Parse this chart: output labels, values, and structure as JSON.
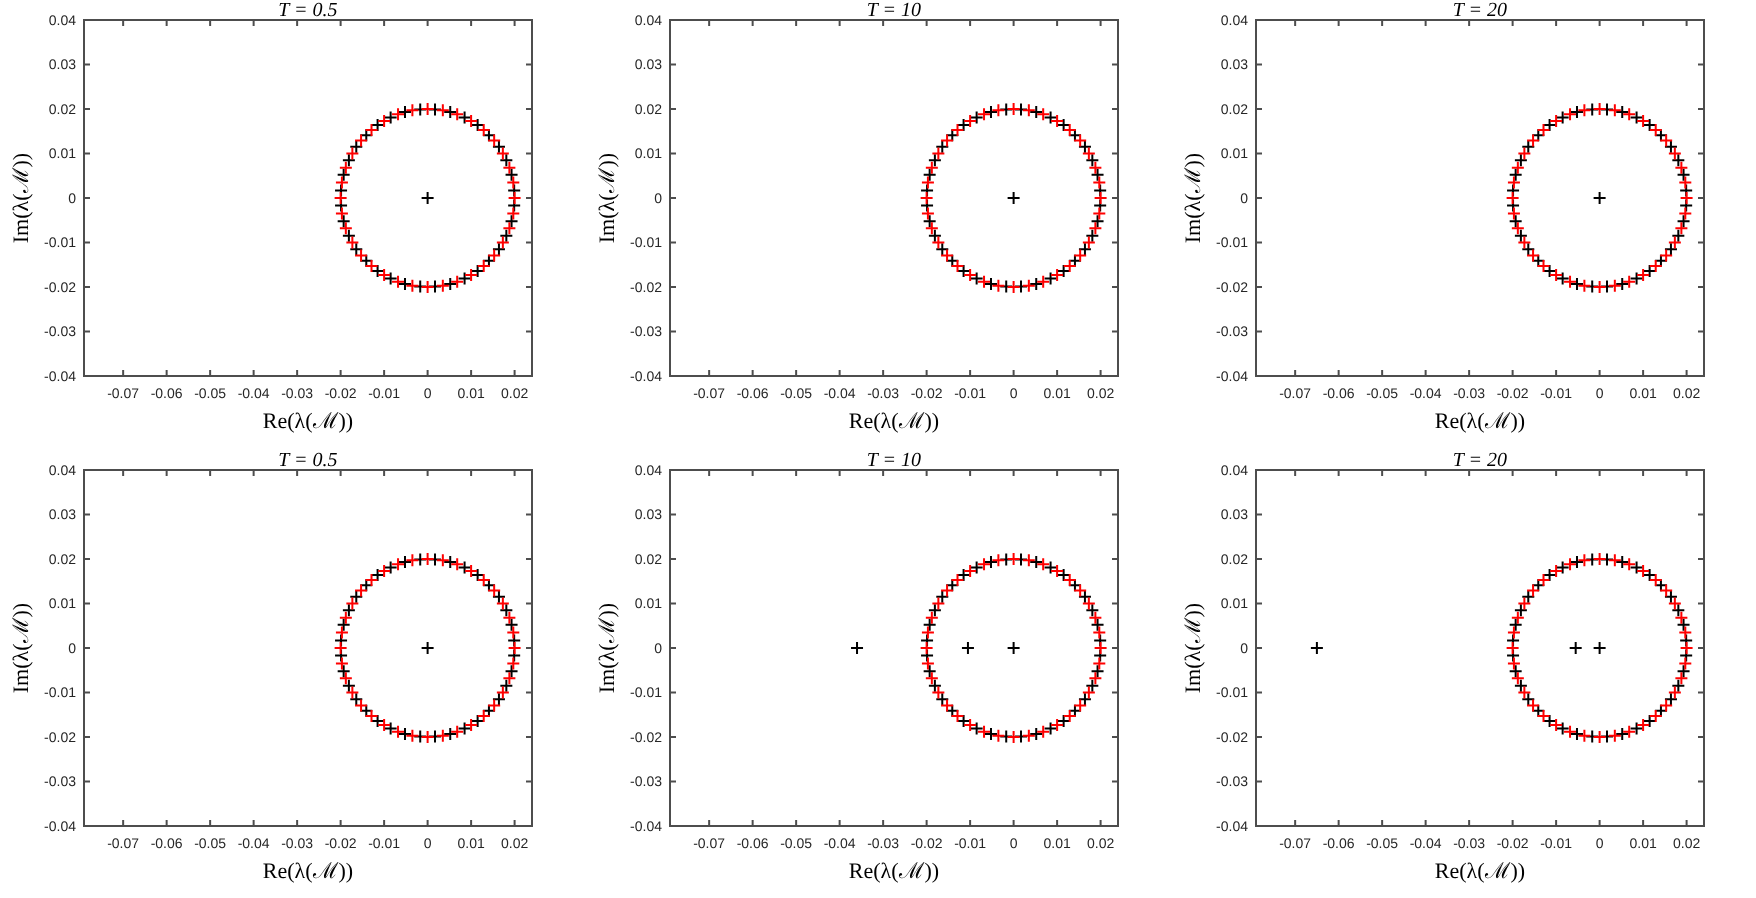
{
  "chart_data": [
    {
      "type": "scatter",
      "title": "T = 0.5",
      "xlabel": "Re(λ(ℳ))",
      "ylabel": "Im(λ(ℳ))",
      "xlim": [
        -0.079,
        0.024
      ],
      "ylim": [
        -0.04,
        0.04
      ],
      "xticks": [
        -0.07,
        -0.06,
        -0.05,
        -0.04,
        -0.03,
        -0.02,
        -0.01,
        0,
        0.01,
        0.02
      ],
      "yticks": [
        -0.04,
        -0.03,
        -0.02,
        -0.01,
        0,
        0.01,
        0.02,
        0.03,
        0.04
      ],
      "marker": "cross",
      "series": [
        {
          "color": "#000000",
          "x": [
            0.0199,
            0.0193,
            0.0181,
            0.0164,
            0.0141,
            0.0115,
            0.0085,
            0.0052,
            0.0017,
            -0.0017,
            -0.0052,
            -0.0085,
            -0.0115,
            -0.0141,
            -0.0164,
            -0.0181,
            -0.0193,
            -0.0199,
            -0.0199,
            -0.0193,
            -0.0181,
            -0.0164,
            -0.0141,
            -0.0115,
            -0.0085,
            -0.0052,
            -0.0017,
            0.0017,
            0.0052,
            0.0085,
            0.0115,
            0.0141,
            0.0164,
            0.0181,
            0.0193,
            0.0199,
            0
          ],
          "values": [
            0.0017,
            0.0052,
            0.0085,
            0.0115,
            0.0141,
            0.0164,
            0.0181,
            0.0193,
            0.0199,
            0.0199,
            0.0193,
            0.0181,
            0.0164,
            0.0141,
            0.0115,
            0.0085,
            0.0052,
            0.0017,
            -0.0017,
            -0.0052,
            -0.0085,
            -0.0115,
            -0.0141,
            -0.0164,
            -0.0181,
            -0.0193,
            -0.0199,
            -0.0199,
            -0.0193,
            -0.0181,
            -0.0164,
            -0.0141,
            -0.0115,
            -0.0085,
            -0.0052,
            -0.0017,
            0
          ]
        },
        {
          "color": "#ff0000",
          "x": [
            0.02,
            0.0197,
            0.0188,
            0.0173,
            0.0153,
            0.0129,
            0.01,
            0.0068,
            0.0035,
            0,
            -0.0035,
            -0.0068,
            -0.01,
            -0.0129,
            -0.0153,
            -0.0173,
            -0.0188,
            -0.0197,
            -0.02,
            -0.0197,
            -0.0188,
            -0.0173,
            -0.0153,
            -0.0129,
            -0.01,
            -0.0068,
            -0.0035,
            0,
            0.0035,
            0.0068,
            0.01,
            0.0129,
            0.0153,
            0.0173,
            0.0188,
            0.0197
          ],
          "values": [
            0,
            0.0035,
            0.0068,
            0.01,
            0.0129,
            0.0153,
            0.0173,
            0.0188,
            0.0197,
            0.02,
            0.0197,
            0.0188,
            0.0173,
            0.0153,
            0.0129,
            0.01,
            0.0068,
            0.0035,
            0,
            -0.0035,
            -0.0068,
            -0.01,
            -0.0129,
            -0.0153,
            -0.0173,
            -0.0188,
            -0.0197,
            -0.02,
            -0.0197,
            -0.0188,
            -0.0173,
            -0.0153,
            -0.0129,
            -0.01,
            -0.0068,
            -0.0035
          ]
        }
      ]
    },
    {
      "type": "scatter",
      "title": "T = 10",
      "xlabel": "Re(λ(ℳ))",
      "ylabel": "Im(λ(ℳ))",
      "xlim": [
        -0.079,
        0.024
      ],
      "ylim": [
        -0.04,
        0.04
      ],
      "xticks": [
        -0.07,
        -0.06,
        -0.05,
        -0.04,
        -0.03,
        -0.02,
        -0.01,
        0,
        0.01,
        0.02
      ],
      "yticks": [
        -0.04,
        -0.03,
        -0.02,
        -0.01,
        0,
        0.01,
        0.02,
        0.03,
        0.04
      ],
      "marker": "cross",
      "series": [
        {
          "color": "#000000",
          "x": [
            0.0199,
            0.0193,
            0.0181,
            0.0164,
            0.0141,
            0.0115,
            0.0085,
            0.0052,
            0.0017,
            -0.0017,
            -0.0052,
            -0.0085,
            -0.0115,
            -0.0141,
            -0.0164,
            -0.0181,
            -0.0193,
            -0.0199,
            -0.0199,
            -0.0193,
            -0.0181,
            -0.0164,
            -0.0141,
            -0.0115,
            -0.0085,
            -0.0052,
            -0.0017,
            0.0017,
            0.0052,
            0.0085,
            0.0115,
            0.0141,
            0.0164,
            0.0181,
            0.0193,
            0.0199,
            0
          ],
          "values": [
            0.0017,
            0.0052,
            0.0085,
            0.0115,
            0.0141,
            0.0164,
            0.0181,
            0.0193,
            0.0199,
            0.0199,
            0.0193,
            0.0181,
            0.0164,
            0.0141,
            0.0115,
            0.0085,
            0.0052,
            0.0017,
            -0.0017,
            -0.0052,
            -0.0085,
            -0.0115,
            -0.0141,
            -0.0164,
            -0.0181,
            -0.0193,
            -0.0199,
            -0.0199,
            -0.0193,
            -0.0181,
            -0.0164,
            -0.0141,
            -0.0115,
            -0.0085,
            -0.0052,
            -0.0017,
            0
          ]
        },
        {
          "color": "#ff0000",
          "x": [
            0.02,
            0.0197,
            0.0188,
            0.0173,
            0.0153,
            0.0129,
            0.01,
            0.0068,
            0.0035,
            0,
            -0.0035,
            -0.0068,
            -0.01,
            -0.0129,
            -0.0153,
            -0.0173,
            -0.0188,
            -0.0197,
            -0.02,
            -0.0197,
            -0.0188,
            -0.0173,
            -0.0153,
            -0.0129,
            -0.01,
            -0.0068,
            -0.0035,
            0,
            0.0035,
            0.0068,
            0.01,
            0.0129,
            0.0153,
            0.0173,
            0.0188,
            0.0197
          ],
          "values": [
            0,
            0.0035,
            0.0068,
            0.01,
            0.0129,
            0.0153,
            0.0173,
            0.0188,
            0.0197,
            0.02,
            0.0197,
            0.0188,
            0.0173,
            0.0153,
            0.0129,
            0.01,
            0.0068,
            0.0035,
            0,
            -0.0035,
            -0.0068,
            -0.01,
            -0.0129,
            -0.0153,
            -0.0173,
            -0.0188,
            -0.0197,
            -0.02,
            -0.0197,
            -0.0188,
            -0.0173,
            -0.0153,
            -0.0129,
            -0.01,
            -0.0068,
            -0.0035
          ]
        }
      ]
    },
    {
      "type": "scatter",
      "title": "T = 20",
      "xlabel": "Re(λ(ℳ))",
      "ylabel": "Im(λ(ℳ))",
      "xlim": [
        -0.079,
        0.024
      ],
      "ylim": [
        -0.04,
        0.04
      ],
      "xticks": [
        -0.07,
        -0.06,
        -0.05,
        -0.04,
        -0.03,
        -0.02,
        -0.01,
        0,
        0.01,
        0.02
      ],
      "yticks": [
        -0.04,
        -0.03,
        -0.02,
        -0.01,
        0,
        0.01,
        0.02,
        0.03,
        0.04
      ],
      "marker": "cross",
      "series": [
        {
          "color": "#000000",
          "x": [
            0.0199,
            0.0193,
            0.0181,
            0.0164,
            0.0141,
            0.0115,
            0.0085,
            0.0052,
            0.0017,
            -0.0017,
            -0.0052,
            -0.0085,
            -0.0115,
            -0.0141,
            -0.0164,
            -0.0181,
            -0.0193,
            -0.0199,
            -0.0199,
            -0.0193,
            -0.0181,
            -0.0164,
            -0.0141,
            -0.0115,
            -0.0085,
            -0.0052,
            -0.0017,
            0.0017,
            0.0052,
            0.0085,
            0.0115,
            0.0141,
            0.0164,
            0.0181,
            0.0193,
            0.0199,
            0
          ],
          "values": [
            0.0017,
            0.0052,
            0.0085,
            0.0115,
            0.0141,
            0.0164,
            0.0181,
            0.0193,
            0.0199,
            0.0199,
            0.0193,
            0.0181,
            0.0164,
            0.0141,
            0.0115,
            0.0085,
            0.0052,
            0.0017,
            -0.0017,
            -0.0052,
            -0.0085,
            -0.0115,
            -0.0141,
            -0.0164,
            -0.0181,
            -0.0193,
            -0.0199,
            -0.0199,
            -0.0193,
            -0.0181,
            -0.0164,
            -0.0141,
            -0.0115,
            -0.0085,
            -0.0052,
            -0.0017,
            0
          ]
        },
        {
          "color": "#ff0000",
          "x": [
            0.02,
            0.0197,
            0.0188,
            0.0173,
            0.0153,
            0.0129,
            0.01,
            0.0068,
            0.0035,
            0,
            -0.0035,
            -0.0068,
            -0.01,
            -0.0129,
            -0.0153,
            -0.0173,
            -0.0188,
            -0.0197,
            -0.02,
            -0.0197,
            -0.0188,
            -0.0173,
            -0.0153,
            -0.0129,
            -0.01,
            -0.0068,
            -0.0035,
            0,
            0.0035,
            0.0068,
            0.01,
            0.0129,
            0.0153,
            0.0173,
            0.0188,
            0.0197
          ],
          "values": [
            0,
            0.0035,
            0.0068,
            0.01,
            0.0129,
            0.0153,
            0.0173,
            0.0188,
            0.0197,
            0.02,
            0.0197,
            0.0188,
            0.0173,
            0.0153,
            0.0129,
            0.01,
            0.0068,
            0.0035,
            0,
            -0.0035,
            -0.0068,
            -0.01,
            -0.0129,
            -0.0153,
            -0.0173,
            -0.0188,
            -0.0197,
            -0.02,
            -0.0197,
            -0.0188,
            -0.0173,
            -0.0153,
            -0.0129,
            -0.01,
            -0.0068,
            -0.0035
          ]
        }
      ]
    },
    {
      "type": "scatter",
      "title": "T = 0.5",
      "xlabel": "Re(λ(ℳ))",
      "ylabel": "Im(λ(ℳ))",
      "xlim": [
        -0.079,
        0.024
      ],
      "ylim": [
        -0.04,
        0.04
      ],
      "xticks": [
        -0.07,
        -0.06,
        -0.05,
        -0.04,
        -0.03,
        -0.02,
        -0.01,
        0,
        0.01,
        0.02
      ],
      "yticks": [
        -0.04,
        -0.03,
        -0.02,
        -0.01,
        0,
        0.01,
        0.02,
        0.03,
        0.04
      ],
      "marker": "cross",
      "series": [
        {
          "color": "#000000",
          "x": [
            0.0199,
            0.0193,
            0.0181,
            0.0164,
            0.0141,
            0.0115,
            0.0085,
            0.0052,
            0.0017,
            -0.0017,
            -0.0052,
            -0.0085,
            -0.0115,
            -0.0141,
            -0.0164,
            -0.0181,
            -0.0193,
            -0.0199,
            -0.0199,
            -0.0193,
            -0.0181,
            -0.0164,
            -0.0141,
            -0.0115,
            -0.0085,
            -0.0052,
            -0.0017,
            0.0017,
            0.0052,
            0.0085,
            0.0115,
            0.0141,
            0.0164,
            0.0181,
            0.0193,
            0.0199,
            0
          ],
          "values": [
            0.0017,
            0.0052,
            0.0085,
            0.0115,
            0.0141,
            0.0164,
            0.0181,
            0.0193,
            0.0199,
            0.0199,
            0.0193,
            0.0181,
            0.0164,
            0.0141,
            0.0115,
            0.0085,
            0.0052,
            0.0017,
            -0.0017,
            -0.0052,
            -0.0085,
            -0.0115,
            -0.0141,
            -0.0164,
            -0.0181,
            -0.0193,
            -0.0199,
            -0.0199,
            -0.0193,
            -0.0181,
            -0.0164,
            -0.0141,
            -0.0115,
            -0.0085,
            -0.0052,
            -0.0017,
            0
          ]
        },
        {
          "color": "#ff0000",
          "x": [
            0.02,
            0.0197,
            0.0188,
            0.0173,
            0.0153,
            0.0129,
            0.01,
            0.0068,
            0.0035,
            0,
            -0.0035,
            -0.0068,
            -0.01,
            -0.0129,
            -0.0153,
            -0.0173,
            -0.0188,
            -0.0197,
            -0.02,
            -0.0197,
            -0.0188,
            -0.0173,
            -0.0153,
            -0.0129,
            -0.01,
            -0.0068,
            -0.0035,
            0,
            0.0035,
            0.0068,
            0.01,
            0.0129,
            0.0153,
            0.0173,
            0.0188,
            0.0197
          ],
          "values": [
            0,
            0.0035,
            0.0068,
            0.01,
            0.0129,
            0.0153,
            0.0173,
            0.0188,
            0.0197,
            0.02,
            0.0197,
            0.0188,
            0.0173,
            0.0153,
            0.0129,
            0.01,
            0.0068,
            0.0035,
            0,
            -0.0035,
            -0.0068,
            -0.01,
            -0.0129,
            -0.0153,
            -0.0173,
            -0.0188,
            -0.0197,
            -0.02,
            -0.0197,
            -0.0188,
            -0.0173,
            -0.0153,
            -0.0129,
            -0.01,
            -0.0068,
            -0.0035
          ]
        }
      ]
    },
    {
      "type": "scatter",
      "title": "T = 10",
      "xlabel": "Re(λ(ℳ))",
      "ylabel": "Im(λ(ℳ))",
      "xlim": [
        -0.079,
        0.024
      ],
      "ylim": [
        -0.04,
        0.04
      ],
      "xticks": [
        -0.07,
        -0.06,
        -0.05,
        -0.04,
        -0.03,
        -0.02,
        -0.01,
        0,
        0.01,
        0.02
      ],
      "yticks": [
        -0.04,
        -0.03,
        -0.02,
        -0.01,
        0,
        0.01,
        0.02,
        0.03,
        0.04
      ],
      "marker": "cross",
      "series": [
        {
          "color": "#000000",
          "x": [
            0.0199,
            0.0193,
            0.0181,
            0.0164,
            0.0141,
            0.0115,
            0.0085,
            0.0052,
            0.0017,
            -0.0017,
            -0.0052,
            -0.0085,
            -0.0115,
            -0.0141,
            -0.0164,
            -0.0181,
            -0.0193,
            -0.0199,
            -0.0199,
            -0.0193,
            -0.0181,
            -0.0164,
            -0.0141,
            -0.0115,
            -0.0085,
            -0.0052,
            -0.0017,
            0.0017,
            0.0052,
            0.0085,
            0.0115,
            0.0141,
            0.0164,
            0.0181,
            0.0193,
            0.0199,
            0,
            -0.0105,
            -0.036
          ],
          "values": [
            0.0017,
            0.0052,
            0.0085,
            0.0115,
            0.0141,
            0.0164,
            0.0181,
            0.0193,
            0.0199,
            0.0199,
            0.0193,
            0.0181,
            0.0164,
            0.0141,
            0.0115,
            0.0085,
            0.0052,
            0.0017,
            -0.0017,
            -0.0052,
            -0.0085,
            -0.0115,
            -0.0141,
            -0.0164,
            -0.0181,
            -0.0193,
            -0.0199,
            -0.0199,
            -0.0193,
            -0.0181,
            -0.0164,
            -0.0141,
            -0.0115,
            -0.0085,
            -0.0052,
            -0.0017,
            0,
            0,
            0
          ]
        },
        {
          "color": "#ff0000",
          "x": [
            0.02,
            0.0197,
            0.0188,
            0.0173,
            0.0153,
            0.0129,
            0.01,
            0.0068,
            0.0035,
            0,
            -0.0035,
            -0.0068,
            -0.01,
            -0.0129,
            -0.0153,
            -0.0173,
            -0.0188,
            -0.0197,
            -0.02,
            -0.0197,
            -0.0188,
            -0.0173,
            -0.0153,
            -0.0129,
            -0.01,
            -0.0068,
            -0.0035,
            0,
            0.0035,
            0.0068,
            0.01,
            0.0129,
            0.0153,
            0.0173,
            0.0188,
            0.0197
          ],
          "values": [
            0,
            0.0035,
            0.0068,
            0.01,
            0.0129,
            0.0153,
            0.0173,
            0.0188,
            0.0197,
            0.02,
            0.0197,
            0.0188,
            0.0173,
            0.0153,
            0.0129,
            0.01,
            0.0068,
            0.0035,
            0,
            -0.0035,
            -0.0068,
            -0.01,
            -0.0129,
            -0.0153,
            -0.0173,
            -0.0188,
            -0.0197,
            -0.02,
            -0.0197,
            -0.0188,
            -0.0173,
            -0.0153,
            -0.0129,
            -0.01,
            -0.0068,
            -0.0035
          ]
        }
      ]
    },
    {
      "type": "scatter",
      "title": "T = 20",
      "xlabel": "Re(λ(ℳ))",
      "ylabel": "Im(λ(ℳ))",
      "xlim": [
        -0.079,
        0.024
      ],
      "ylim": [
        -0.04,
        0.04
      ],
      "xticks": [
        -0.07,
        -0.06,
        -0.05,
        -0.04,
        -0.03,
        -0.02,
        -0.01,
        0,
        0.01,
        0.02
      ],
      "yticks": [
        -0.04,
        -0.03,
        -0.02,
        -0.01,
        0,
        0.01,
        0.02,
        0.03,
        0.04
      ],
      "marker": "cross",
      "series": [
        {
          "color": "#000000",
          "x": [
            0.0199,
            0.0193,
            0.0181,
            0.0164,
            0.0141,
            0.0115,
            0.0085,
            0.0052,
            0.0017,
            -0.0017,
            -0.0052,
            -0.0085,
            -0.0115,
            -0.0141,
            -0.0164,
            -0.0181,
            -0.0193,
            -0.0199,
            -0.0199,
            -0.0193,
            -0.0181,
            -0.0164,
            -0.0141,
            -0.0115,
            -0.0085,
            -0.0052,
            -0.0017,
            0.0017,
            0.0052,
            0.0085,
            0.0115,
            0.0141,
            0.0164,
            0.0181,
            0.0193,
            0.0199,
            0,
            -0.0055,
            -0.065
          ],
          "values": [
            0.0017,
            0.0052,
            0.0085,
            0.0115,
            0.0141,
            0.0164,
            0.0181,
            0.0193,
            0.0199,
            0.0199,
            0.0193,
            0.0181,
            0.0164,
            0.0141,
            0.0115,
            0.0085,
            0.0052,
            0.0017,
            -0.0017,
            -0.0052,
            -0.0085,
            -0.0115,
            -0.0141,
            -0.0164,
            -0.0181,
            -0.0193,
            -0.0199,
            -0.0199,
            -0.0193,
            -0.0181,
            -0.0164,
            -0.0141,
            -0.0115,
            -0.0085,
            -0.0052,
            -0.0017,
            0,
            0,
            0
          ]
        },
        {
          "color": "#ff0000",
          "x": [
            0.02,
            0.0197,
            0.0188,
            0.0173,
            0.0153,
            0.0129,
            0.01,
            0.0068,
            0.0035,
            0,
            -0.0035,
            -0.0068,
            -0.01,
            -0.0129,
            -0.0153,
            -0.0173,
            -0.0188,
            -0.0197,
            -0.02,
            -0.0197,
            -0.0188,
            -0.0173,
            -0.0153,
            -0.0129,
            -0.01,
            -0.0068,
            -0.0035,
            0,
            0.0035,
            0.0068,
            0.01,
            0.0129,
            0.0153,
            0.0173,
            0.0188,
            0.0197
          ],
          "values": [
            0,
            0.0035,
            0.0068,
            0.01,
            0.0129,
            0.0153,
            0.0173,
            0.0188,
            0.0197,
            0.02,
            0.0197,
            0.0188,
            0.0173,
            0.0153,
            0.0129,
            0.01,
            0.0068,
            0.0035,
            0,
            -0.0035,
            -0.0068,
            -0.01,
            -0.0129,
            -0.0153,
            -0.0173,
            -0.0188,
            -0.0197,
            -0.02,
            -0.0197,
            -0.0188,
            -0.0173,
            -0.0153,
            -0.0129,
            -0.01,
            -0.0068,
            -0.0035
          ]
        }
      ]
    }
  ]
}
